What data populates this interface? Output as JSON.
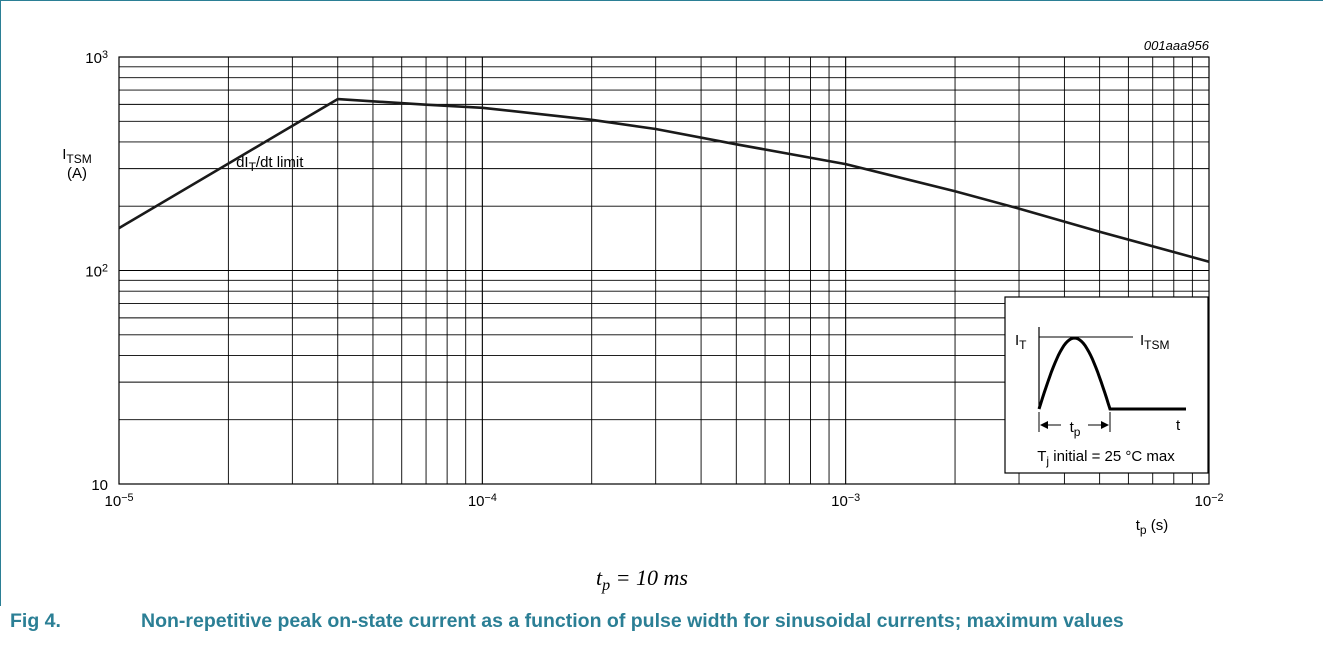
{
  "figure": {
    "id_label": "001aaa956",
    "number": "Fig 4.",
    "caption": "Non-repetitive peak on-state current as a function of pulse width for sinusoidal currents; maximum values",
    "condition": {
      "t": "t",
      "sub": "p",
      "rest": " = 10 ms"
    }
  },
  "chart_data": {
    "type": "line",
    "xscale": "log",
    "yscale": "log",
    "xlim": [
      1e-05,
      0.01
    ],
    "ylim": [
      10,
      1000
    ],
    "grid": true,
    "xlabel": {
      "main": "t",
      "sub": "p",
      "unit": " (s)"
    },
    "ylabel": {
      "main": "I",
      "sub": "TSM",
      "unit": "(A)"
    },
    "x_ticks": [
      {
        "base": "10",
        "exp": "−5"
      },
      {
        "base": "10",
        "exp": "−4"
      },
      {
        "base": "10",
        "exp": "−3"
      },
      {
        "base": "10",
        "exp": "−2"
      }
    ],
    "y_ticks": [
      {
        "base": "10",
        "exp": ""
      },
      {
        "base": "10",
        "exp": "2"
      },
      {
        "base": "10",
        "exp": "3"
      }
    ],
    "series": [
      {
        "x": [
          1e-05,
          4e-05,
          7e-05,
          0.0001,
          0.0002,
          0.0003,
          0.0005,
          0.001,
          0.002,
          0.003,
          0.005,
          0.01
        ],
        "y": [
          158,
          635,
          598,
          578,
          508,
          460,
          390,
          315,
          235,
          195,
          152,
          110
        ],
        "color": "#1a1a1a"
      }
    ],
    "annotations": [
      {
        "main": "dI",
        "sub": "T",
        "rest": "/dt limit",
        "x": 2.1e-05,
        "y": 330
      }
    ],
    "inset": {
      "label_it": {
        "main": "I",
        "sub": "T"
      },
      "label_itsm": {
        "main": "I",
        "sub": "TSM"
      },
      "label_t": "t",
      "label_tp": {
        "main": "t",
        "sub": "p"
      },
      "condition": {
        "main": "T",
        "sub": "j",
        "rest": " initial = 25 °C max"
      }
    }
  }
}
